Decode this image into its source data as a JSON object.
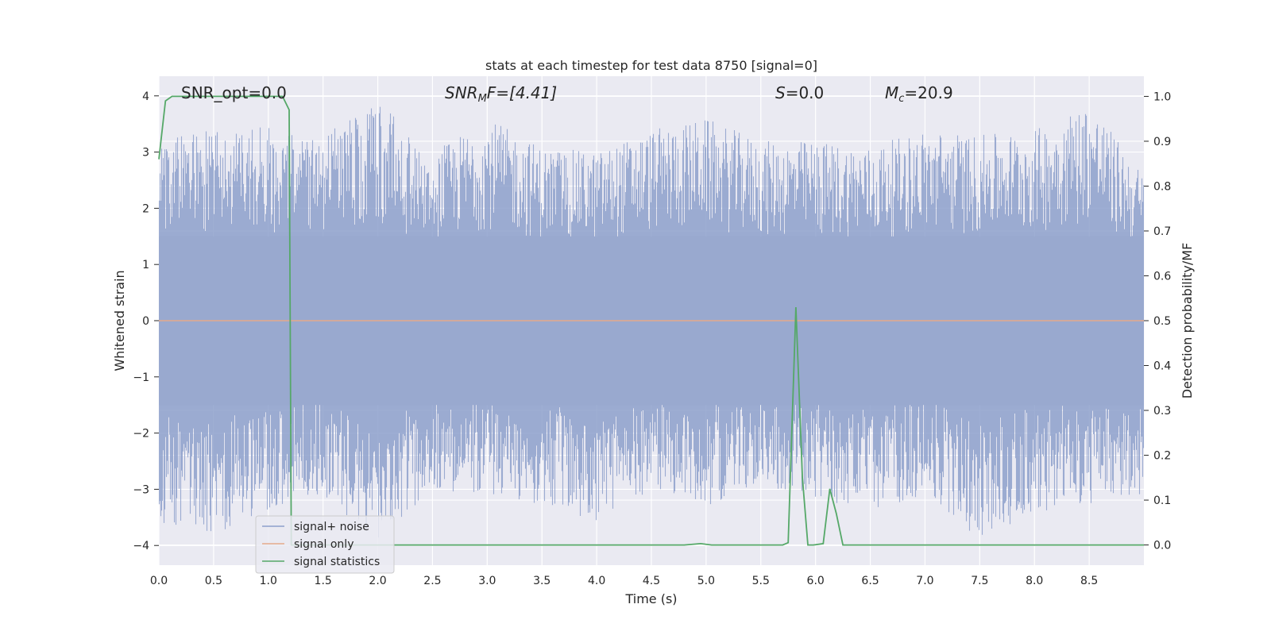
{
  "chart_data": {
    "type": "line",
    "title": "stats at each timestep for test data 8750 [signal=0]",
    "xlabel": "Time (s)",
    "ylabel": "Whitened strain",
    "y2label": "Detection probability/MF",
    "xlim": [
      0.0,
      9.0
    ],
    "ylim": [
      -4.35,
      4.35
    ],
    "y2lim": [
      -0.045,
      1.045
    ],
    "xticks": [
      "0.0",
      "0.5",
      "1.0",
      "1.5",
      "2.0",
      "2.5",
      "3.0",
      "3.5",
      "4.0",
      "4.5",
      "5.0",
      "5.5",
      "6.0",
      "6.5",
      "7.0",
      "7.5",
      "8.0",
      "8.5"
    ],
    "yticks": [
      "4",
      "3",
      "2",
      "1",
      "0",
      "−1",
      "−2",
      "−3",
      "−4"
    ],
    "y2ticks": [
      "1.0",
      "0.9",
      "0.8",
      "0.7",
      "0.6",
      "0.5",
      "0.4",
      "0.3",
      "0.2",
      "0.1",
      "0.0"
    ],
    "grid": true,
    "legend_position": "lower-left",
    "annotations": {
      "snr_opt": "SNR_opt=0.0",
      "snr_mf_main": "SNR",
      "snr_mf_sub": "M",
      "snr_mf_rest": "F=[4.41]",
      "s_main": "S",
      "s_rest": "=0.0",
      "mc_main": "M",
      "mc_sub": "c",
      "mc_rest": "=20.9"
    },
    "series": [
      {
        "name": "signal+ noise",
        "color": "#8da0cb",
        "description_envelope": {
          "x": [
            0.0,
            0.5,
            1.0,
            1.5,
            2.0,
            2.5,
            3.0,
            3.5,
            4.0,
            4.5,
            5.0,
            5.5,
            6.0,
            6.5,
            7.0,
            7.5,
            8.0,
            8.5,
            9.0
          ],
          "max": [
            3.2,
            3.4,
            3.5,
            3.3,
            3.9,
            3.0,
            3.6,
            3.1,
            3.0,
            3.4,
            3.6,
            3.2,
            3.2,
            3.1,
            3.4,
            3.3,
            3.4,
            3.9,
            2.6
          ],
          "min": [
            -3.6,
            -3.8,
            -3.4,
            -3.1,
            -4.0,
            -3.0,
            -3.1,
            -3.3,
            -3.6,
            -3.0,
            -3.3,
            -2.9,
            -3.2,
            -3.4,
            -3.1,
            -3.9,
            -3.4,
            -3.3,
            -3.1
          ]
        }
      },
      {
        "name": "signal only",
        "color": "#e5a98b",
        "x": [
          0.0,
          9.0
        ],
        "y": [
          0.0,
          0.0
        ]
      },
      {
        "name": "signal statistics",
        "color": "#55a868",
        "axis": "right",
        "x": [
          0.0,
          0.06,
          0.12,
          0.2,
          1.0,
          1.13,
          1.19,
          1.21,
          1.25,
          2.0,
          3.0,
          4.0,
          4.8,
          4.95,
          5.05,
          5.5,
          5.7,
          5.75,
          5.82,
          5.88,
          5.93,
          5.98,
          6.07,
          6.13,
          6.19,
          6.25,
          7.0,
          8.0,
          9.0
        ],
        "y": [
          0.86,
          0.99,
          1.0,
          1.0,
          1.0,
          1.0,
          0.97,
          0.0,
          0.0,
          0.0,
          0.0,
          0.0,
          0.0,
          0.003,
          0.0,
          0.0,
          0.0,
          0.005,
          0.53,
          0.15,
          0.0,
          0.0,
          0.003,
          0.125,
          0.07,
          0.0,
          0.0,
          0.0,
          0.0
        ]
      }
    ]
  }
}
